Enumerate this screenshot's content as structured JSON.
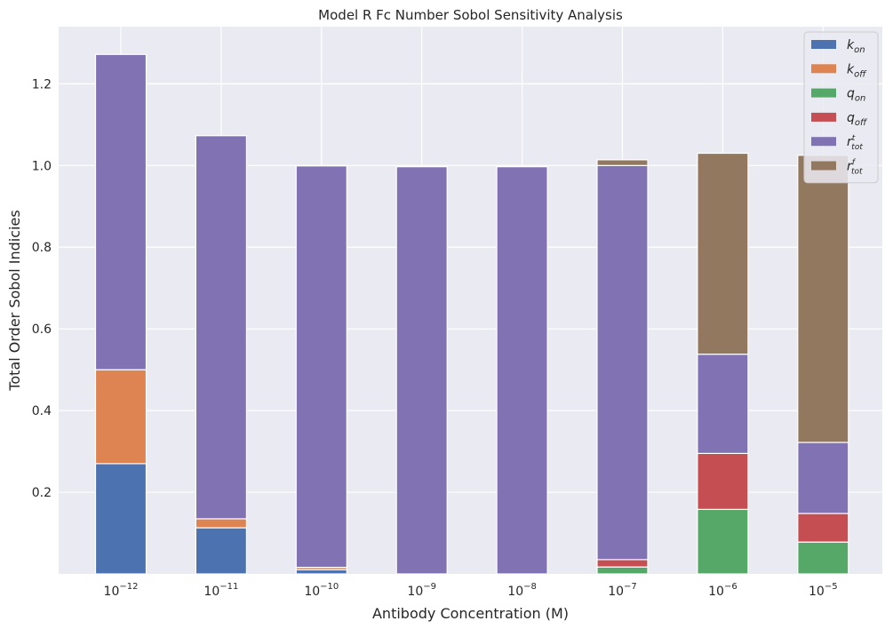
{
  "chart_data": {
    "type": "bar",
    "stacked": true,
    "title": "Model R Fc Number Sobol Sensitivity Analysis",
    "xlabel": "Antibody Concentration (M)",
    "ylabel": "Total Order Sobol Indicies",
    "categories": [
      "10−12",
      "10−11",
      "10−10",
      "10−9",
      "10−8",
      "10−7",
      "10−6",
      "10−5"
    ],
    "category_exponents": [
      "−12",
      "−11",
      "−10",
      "−9",
      "−8",
      "−7",
      "−6",
      "−5"
    ],
    "ylim": [
      0,
      1.34
    ],
    "yticks": [
      "0.2",
      "0.4",
      "0.6",
      "0.8",
      "1.0",
      "1.2"
    ],
    "grid": true,
    "legend_position": "top-right",
    "series": [
      {
        "base": "k",
        "sub": "on",
        "sup": "",
        "color": "#4c72b0",
        "values": [
          0.27,
          0.113,
          0.01,
          0.0,
          0.0,
          0.0,
          0.0,
          0.0
        ]
      },
      {
        "base": "k",
        "sub": "off",
        "sup": "",
        "color": "#dd8452",
        "values": [
          0.23,
          0.022,
          0.006,
          0.0,
          0.0,
          0.0,
          0.0,
          0.0
        ]
      },
      {
        "base": "q",
        "sub": "on",
        "sup": "",
        "color": "#55a868",
        "values": [
          0.0,
          0.0,
          0.0,
          0.0,
          0.0,
          0.017,
          0.158,
          0.078
        ]
      },
      {
        "base": "q",
        "sub": "off",
        "sup": "",
        "color": "#c44e52",
        "values": [
          0.0,
          0.0,
          0.0,
          0.0,
          0.0,
          0.018,
          0.137,
          0.07
        ]
      },
      {
        "base": "r",
        "sub": "tot",
        "sup": "t",
        "color": "#8172b3",
        "values": [
          0.772,
          0.938,
          0.983,
          0.997,
          0.997,
          0.965,
          0.243,
          0.174
        ]
      },
      {
        "base": "r",
        "sub": "tot",
        "sup": "f",
        "color": "#937860",
        "values": [
          0.0,
          0.0,
          0.0,
          0.0,
          0.0,
          0.014,
          0.492,
          0.703
        ]
      }
    ]
  }
}
